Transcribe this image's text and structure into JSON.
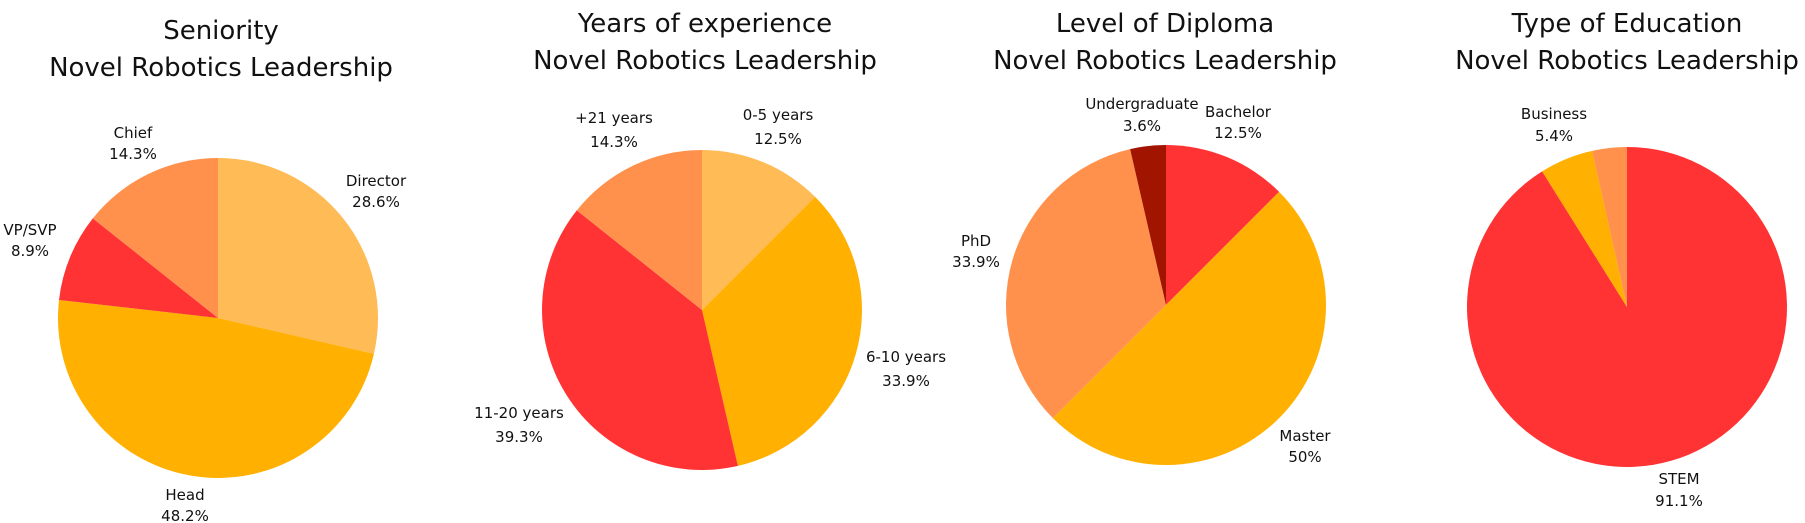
{
  "chart_data": [
    {
      "type": "pie",
      "title": [
        "Seniority",
        "Novel Robotics Leadership"
      ],
      "slices": [
        {
          "label": "Director",
          "value": 28.6,
          "display": "28.6%",
          "color": "#FFBB55"
        },
        {
          "label": "Head",
          "value": 48.2,
          "display": "48.2%",
          "color": "#FFB000"
        },
        {
          "label": "VP/SVP",
          "value": 8.9,
          "display": "8.9%",
          "color": "#FF3333"
        },
        {
          "label": "Chief",
          "value": 14.3,
          "display": "14.3%",
          "color": "#FF914D"
        }
      ]
    },
    {
      "type": "pie",
      "title": [
        "Years of experience",
        "Novel Robotics Leadership"
      ],
      "slices": [
        {
          "label": "0-5 years",
          "value": 12.5,
          "display": "12.5%",
          "color": "#FFBB55"
        },
        {
          "label": "6-10 years",
          "value": 33.9,
          "display": "33.9%",
          "color": "#FFB000"
        },
        {
          "label": "11-20 years",
          "value": 39.3,
          "display": "39.3%",
          "color": "#FF3333"
        },
        {
          "label": "+21 years",
          "value": 14.3,
          "display": "14.3%",
          "color": "#FF914D"
        }
      ]
    },
    {
      "type": "pie",
      "title": [
        "Level of Diploma",
        "Novel Robotics Leadership"
      ],
      "slices": [
        {
          "label": "Bachelor",
          "value": 12.5,
          "display": "12.5%",
          "color": "#FF3333"
        },
        {
          "label": "Master",
          "value": 50,
          "display": "50%",
          "color": "#FFB000"
        },
        {
          "label": "PhD",
          "value": 33.9,
          "display": "33.9%",
          "color": "#FF914D"
        },
        {
          "label": "Undergraduate",
          "value": 3.6,
          "display": "3.6%",
          "color": "#A01400"
        }
      ]
    },
    {
      "type": "pie",
      "title": [
        "Type of Education",
        "Novel Robotics Leadership"
      ],
      "slices": [
        {
          "label": "STEM",
          "value": 91.1,
          "display": "91.1%",
          "color": "#FF3333"
        },
        {
          "label": "Business",
          "value": 5.4,
          "display": "5.4%",
          "color": "#FFB000"
        },
        {
          "label": "",
          "value": 3.5,
          "display": "",
          "color": "#FF914D"
        }
      ]
    }
  ]
}
